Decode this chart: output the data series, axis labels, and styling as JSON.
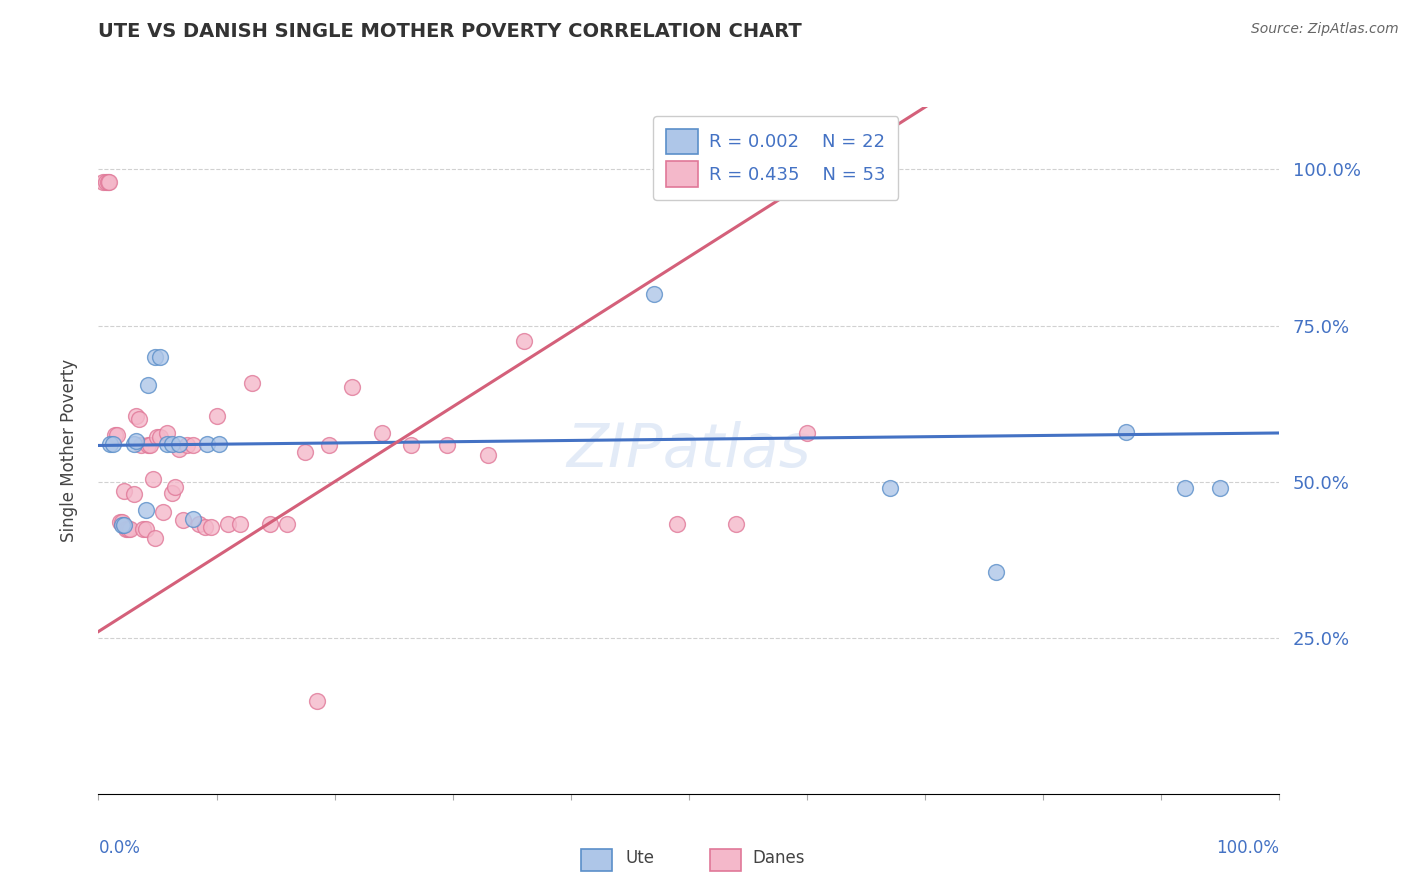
{
  "title": "UTE VS DANISH SINGLE MOTHER POVERTY CORRELATION CHART",
  "source": "Source: ZipAtlas.com",
  "ylabel": "Single Mother Poverty",
  "legend_ute_R": "R = 0.002",
  "legend_ute_N": "N = 22",
  "legend_danes_R": "R = 0.435",
  "legend_danes_N": "N = 53",
  "ute_color": "#aec6e8",
  "danes_color": "#f4b8ca",
  "ute_edge_color": "#5b8fc9",
  "danes_edge_color": "#e07898",
  "ute_line_color": "#4472c4",
  "danes_line_color": "#d4607a",
  "text_color": "#4472c4",
  "grid_color": "#cccccc",
  "title_color": "#333333",
  "watermark_color": "#c8d8f0",
  "ute_x": [
    0.01,
    0.012,
    0.02,
    0.022,
    0.03,
    0.032,
    0.04,
    0.042,
    0.048,
    0.052,
    0.058,
    0.062,
    0.068,
    0.08,
    0.092,
    0.102,
    0.47,
    0.67,
    0.76,
    0.87,
    0.92,
    0.95
  ],
  "ute_y": [
    0.56,
    0.56,
    0.43,
    0.43,
    0.56,
    0.565,
    0.455,
    0.655,
    0.7,
    0.7,
    0.56,
    0.56,
    0.56,
    0.44,
    0.56,
    0.56,
    0.8,
    0.49,
    0.355,
    0.58,
    0.49,
    0.49
  ],
  "danes_x": [
    0.004,
    0.006,
    0.008,
    0.009,
    0.014,
    0.016,
    0.018,
    0.02,
    0.022,
    0.023,
    0.025,
    0.027,
    0.03,
    0.032,
    0.034,
    0.036,
    0.038,
    0.04,
    0.042,
    0.044,
    0.046,
    0.048,
    0.05,
    0.052,
    0.055,
    0.058,
    0.062,
    0.065,
    0.068,
    0.072,
    0.075,
    0.08,
    0.085,
    0.09,
    0.095,
    0.1,
    0.11,
    0.12,
    0.13,
    0.145,
    0.16,
    0.175,
    0.195,
    0.215,
    0.24,
    0.265,
    0.295,
    0.33,
    0.36,
    0.49,
    0.54,
    0.6,
    0.185
  ],
  "danes_y": [
    0.98,
    0.98,
    0.98,
    0.98,
    0.575,
    0.575,
    0.435,
    0.435,
    0.485,
    0.425,
    0.425,
    0.425,
    0.48,
    0.605,
    0.6,
    0.558,
    0.425,
    0.425,
    0.558,
    0.558,
    0.505,
    0.41,
    0.572,
    0.572,
    0.452,
    0.578,
    0.482,
    0.492,
    0.552,
    0.438,
    0.558,
    0.558,
    0.432,
    0.428,
    0.428,
    0.605,
    0.432,
    0.432,
    0.658,
    0.432,
    0.432,
    0.548,
    0.558,
    0.652,
    0.578,
    0.558,
    0.558,
    0.542,
    0.725,
    0.432,
    0.432,
    0.578,
    0.148
  ],
  "xlim": [
    0.0,
    1.0
  ],
  "ylim": [
    0.0,
    1.1
  ],
  "yticks": [
    0.25,
    0.5,
    0.75,
    1.0
  ],
  "xticks": [
    0.0,
    0.1,
    0.2,
    0.3,
    0.4,
    0.5,
    0.6,
    0.7,
    0.8,
    0.9,
    1.0
  ],
  "marker_size": 130,
  "marker_alpha": 0.8,
  "marker_linewidth": 1.0,
  "trendline_linewidth": 2.2,
  "ute_trend_slope": 0.02,
  "ute_trend_intercept": 0.558,
  "danes_trend_slope": 1.2,
  "danes_trend_intercept": 0.26
}
